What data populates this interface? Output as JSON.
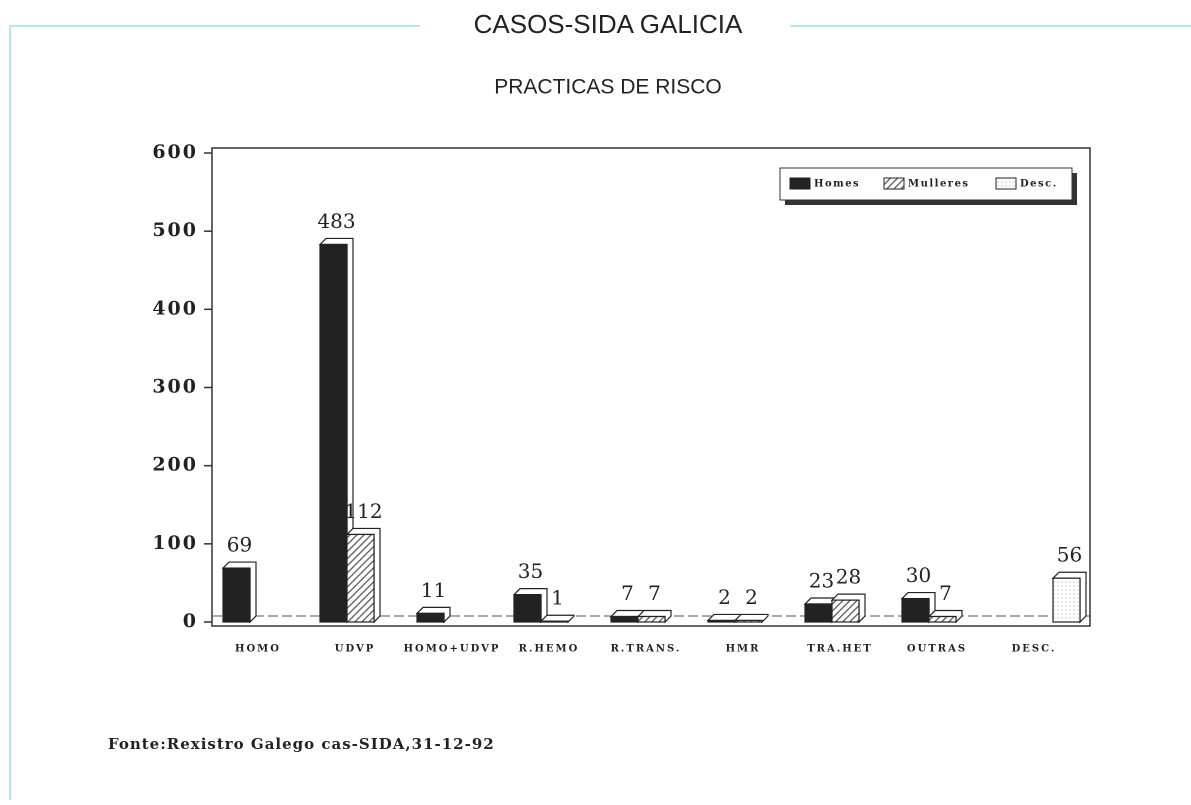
{
  "chart_data": {
    "type": "bar",
    "title": "CASOS-SIDA GALICIA",
    "subtitle": "PRACTICAS DE RISCO",
    "source": "Fonte:Rexistro Galego cas-SIDA,31-12-92",
    "categories": [
      "HOMO",
      "UDVP",
      "HOMO+UDVP",
      "R.HEMO",
      "R.TRANS.",
      "HMR",
      "TRA.HET",
      "OUTRAS",
      "DESC."
    ],
    "series": [
      {
        "name": "Homes",
        "color": "#222222",
        "values": [
          69,
          483,
          11,
          35,
          7,
          2,
          23,
          30,
          null
        ]
      },
      {
        "name": "Mulleres",
        "color": "#555555",
        "values": [
          null,
          112,
          null,
          1,
          7,
          2,
          28,
          7,
          null
        ]
      },
      {
        "name": "Desc.",
        "color": "#bbbbbb",
        "values": [
          null,
          null,
          null,
          null,
          null,
          null,
          null,
          null,
          56
        ]
      }
    ],
    "ylim": [
      0,
      600
    ],
    "yticks": [
      0,
      100,
      200,
      300,
      400,
      500,
      600
    ],
    "legend": "upper right"
  }
}
